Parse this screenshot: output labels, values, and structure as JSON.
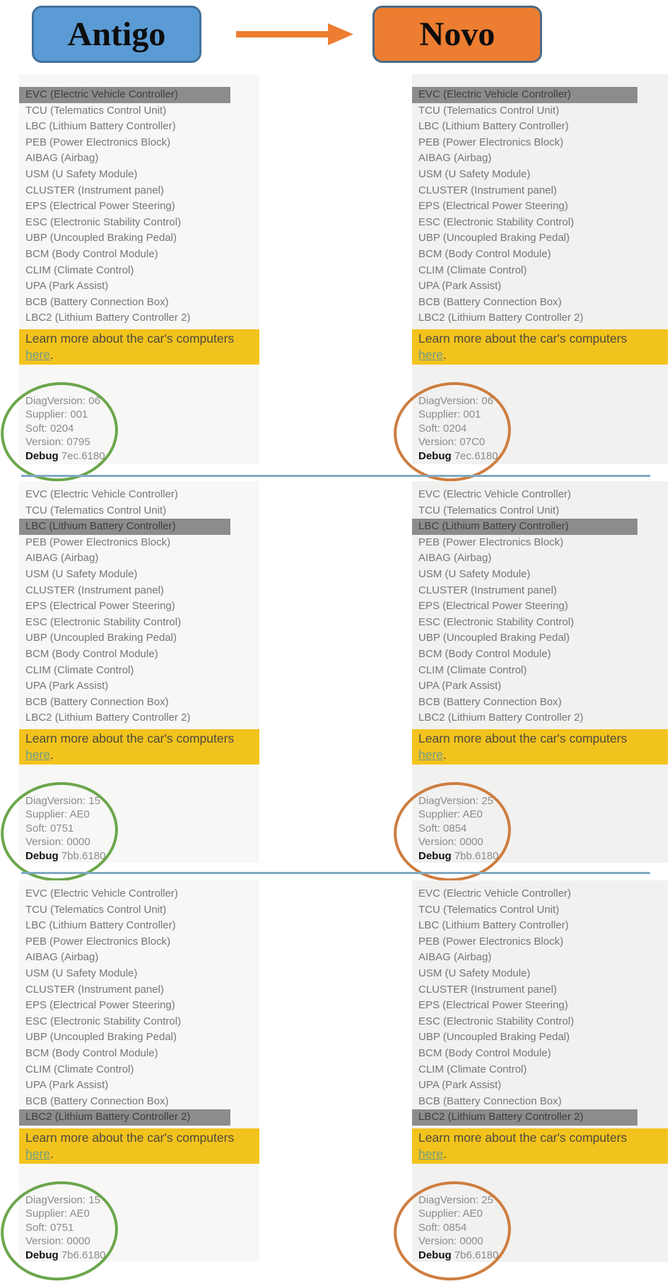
{
  "header": {
    "old_label": "Antigo",
    "new_label": "Novo",
    "old_bg_color": "#5B9BD5",
    "old_border_color": "#41719C",
    "new_bg_color": "#EC7D31",
    "new_border_color": "#4C6B87",
    "arrow_color": "#EC7D31"
  },
  "modules": [
    "EVC (Electric Vehicle Controller)",
    "TCU (Telematics Control Unit)",
    "LBC (Lithium Battery Controller)",
    "PEB (Power Electronics Block)",
    "AIBAG (Airbag)",
    "USM (U Safety Module)",
    "CLUSTER (Instrument panel)",
    "EPS (Electrical Power Steering)",
    "ESC (Electronic Stability Control)",
    "UBP (Uncoupled Braking Pedal)",
    "BCM (Body Control Module)",
    "CLIM (Climate Control)",
    "UPA (Park Assist)",
    "BCB (Battery Connection Box)",
    "LBC2 (Lithium Battery Controller 2)"
  ],
  "banner": {
    "text": "Learn more about the car's computers",
    "link_label": "here",
    "suffix": ".",
    "bg_color": "#F3C31D",
    "link_color": "#6E9B8A"
  },
  "version_labels": {
    "diag": "DiagVersion:",
    "supplier": "Supplier:",
    "soft": "Soft:",
    "version": "Version:",
    "debug": "Debug"
  },
  "annotation_colors": {
    "old_circle": "#6BA64C",
    "new_circle": "#CE7D3F",
    "divider": "#7FA9C3",
    "selected_row_bg": "#8C8C8C"
  },
  "sections": [
    {
      "selected_module": "EVC (Electric Vehicle Controller)",
      "selected_index": 0,
      "old": {
        "diag": "06",
        "supplier": "001",
        "soft": "0204",
        "version": "0795",
        "debug": "7ec.6180"
      },
      "new": {
        "diag": "06",
        "supplier": "001",
        "soft": "0204",
        "version": "07C0",
        "debug": "7ec.6180"
      }
    },
    {
      "selected_module": "LBC (Lithium Battery Controller)",
      "selected_index": 2,
      "old": {
        "diag": "15",
        "supplier": "AE0",
        "soft": "0751",
        "version": "0000",
        "debug": "7bb.6180"
      },
      "new": {
        "diag": "25",
        "supplier": "AE0",
        "soft": "0854",
        "version": "0000",
        "debug": "7bb.6180"
      }
    },
    {
      "selected_module": "LBC2 (Lithium Battery Controller 2)",
      "selected_index": 14,
      "old": {
        "diag": "15",
        "supplier": "AE0",
        "soft": "0751",
        "version": "0000",
        "debug": "7b6.6180"
      },
      "new": {
        "diag": "25",
        "supplier": "AE0",
        "soft": "0854",
        "version": "0000",
        "debug": "7b6.6180"
      }
    }
  ]
}
